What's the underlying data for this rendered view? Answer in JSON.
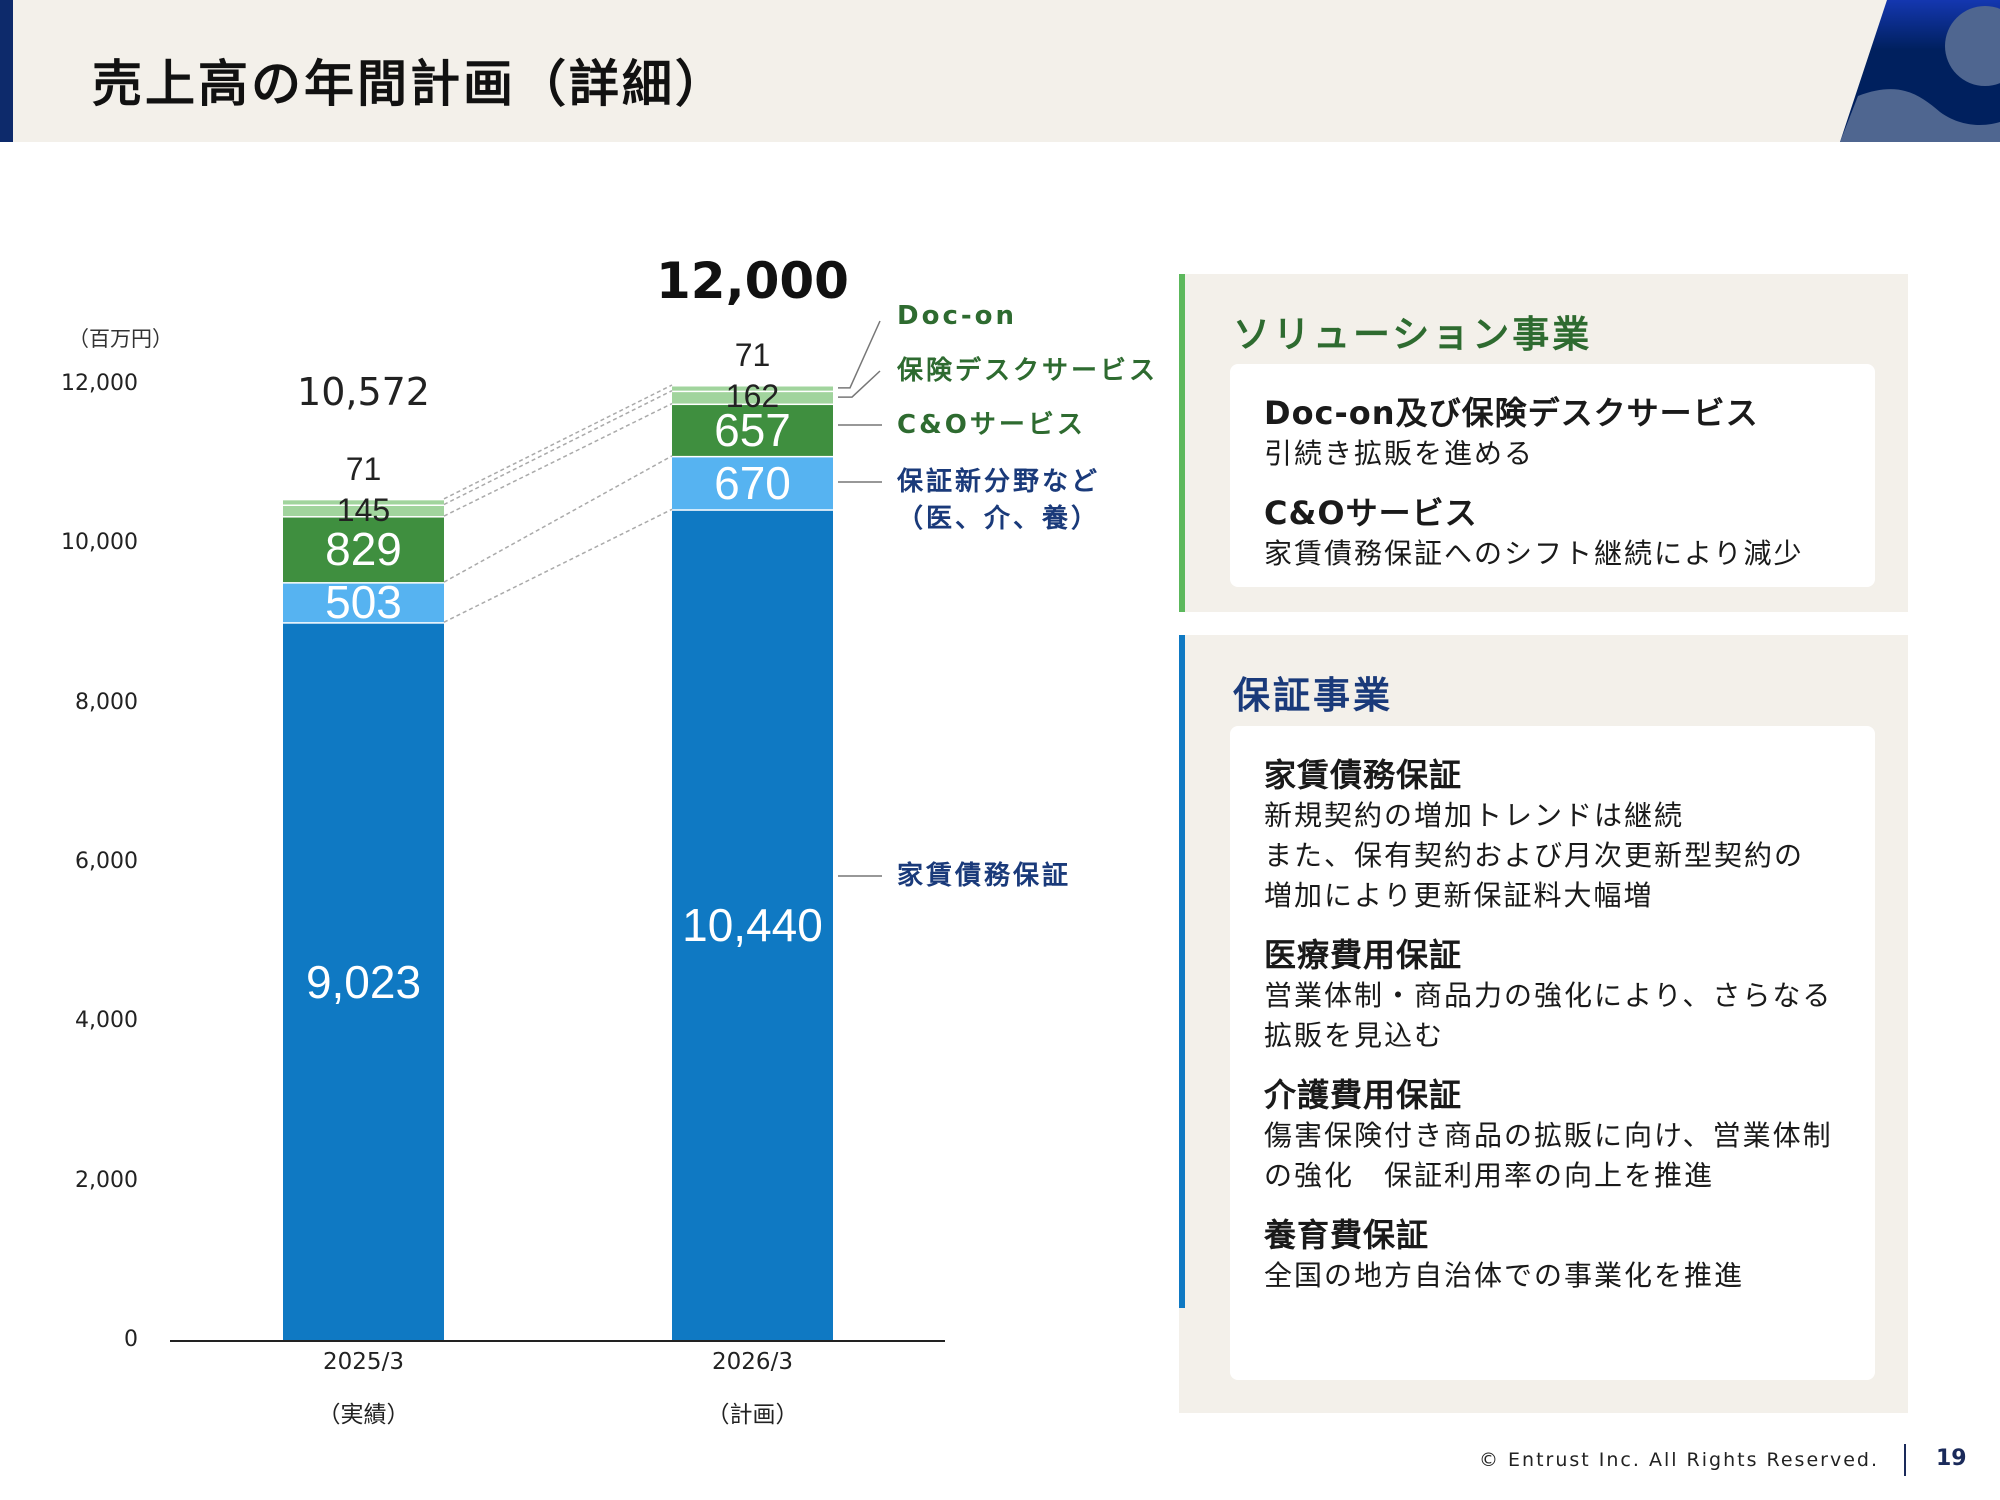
{
  "header": {
    "title": "売上高の年間計画（詳細）"
  },
  "chart_data": {
    "type": "bar",
    "stacked": true,
    "unit_label": "（百万円）",
    "categories": [
      "2025/3",
      "2026/3"
    ],
    "category_sublabels": [
      "（実績）",
      "（計画）"
    ],
    "ylim": [
      0,
      12000
    ],
    "yticks": [
      "0",
      "2,000",
      "4,000",
      "6,000",
      "8,000",
      "10,000",
      "12,000"
    ],
    "ytick_values": [
      0,
      2000,
      4000,
      6000,
      8000,
      10000,
      12000
    ],
    "totals": [
      "10,572",
      "12,000"
    ],
    "series": [
      {
        "name": "家賃債務保証",
        "values": [
          9023,
          10440
        ],
        "labels": [
          "9,023",
          "10,440"
        ],
        "color": "#0f79c3"
      },
      {
        "name": "保証新分野など",
        "name_line2": "（医、介、養）",
        "values": [
          503,
          670
        ],
        "labels": [
          "503",
          "670"
        ],
        "color": "#56b3f1"
      },
      {
        "name": "C&Oサービス",
        "values": [
          829,
          657
        ],
        "labels": [
          "829",
          "657"
        ],
        "color": "#3f8f3f"
      },
      {
        "name": "保険デスクサービス",
        "values": [
          145,
          162
        ],
        "labels": [
          "145",
          "162"
        ],
        "color": "#a1d49d"
      },
      {
        "name": "Doc-on",
        "values": [
          71,
          71
        ],
        "labels": [
          "71",
          "71"
        ],
        "color": "#a1d49d"
      }
    ],
    "legend_colors": {
      "solution": "#2e6b30",
      "guarantee": "#1a3a7a"
    }
  },
  "panels": {
    "solution": {
      "title": "ソリューション事業",
      "items": [
        {
          "heading": "Doc-on及び保険デスクサービス",
          "lines": [
            "引続き拡販を進める"
          ]
        },
        {
          "heading": "C&Oサービス",
          "lines": [
            "家賃債務保証へのシフト継続により減少"
          ]
        }
      ]
    },
    "guarantee": {
      "title": "保証事業",
      "items": [
        {
          "heading": "家賃債務保証",
          "lines": [
            "新規契約の増加トレンドは継続",
            "また、保有契約および月次更新型契約の",
            "増加により更新保証料大幅増"
          ]
        },
        {
          "heading": "医療費用保証",
          "lines": [
            "営業体制・商品力の強化により、さらなる",
            "拡販を見込む"
          ]
        },
        {
          "heading": "介護費用保証",
          "lines": [
            "傷害保険付き商品の拡販に向け、営業体制",
            "の強化　保証利用率の向上を推進"
          ]
        },
        {
          "heading": "養育費保証",
          "lines": [
            "全国の地方自治体での事業化を推進"
          ]
        }
      ]
    }
  },
  "footer": {
    "copyright": "© Entrust Inc. All Rights Reserved.",
    "page": "19"
  }
}
